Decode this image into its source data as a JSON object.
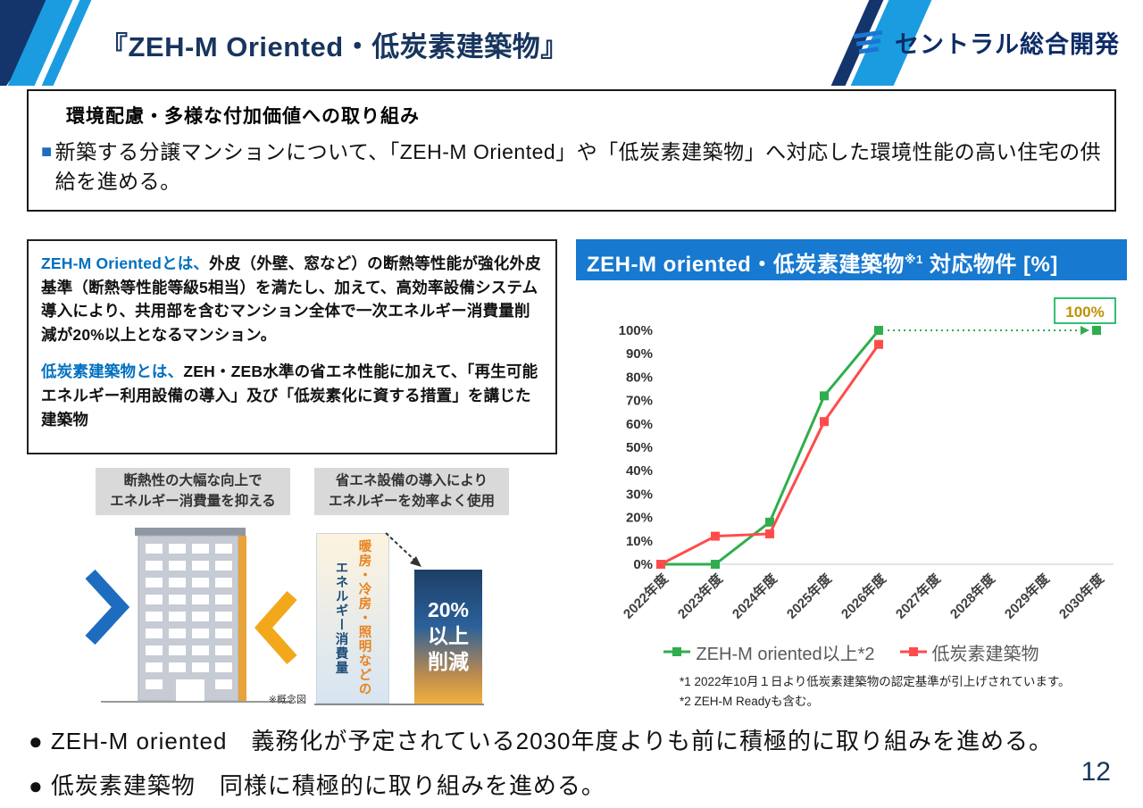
{
  "colors": {
    "accent_blue": "#1B9CE0",
    "navy": "#17355E",
    "chart_header_bg": "#1779D0",
    "lead_blue": "#0070C0",
    "bullet_blue": "#1E6BBF",
    "series_green": "#2FAE4D",
    "series_red": "#FF4B4B"
  },
  "page": {
    "title": "『ZEH-M Oriented・低炭素建築物』",
    "logo_text": "セントラル総合開発",
    "page_number": "12"
  },
  "intro": {
    "heading": "環境配慮・多様な付加価値への取り組み",
    "marker": "■",
    "bullet": "新築する分譲マンションについて、「ZEH-M Oriented」や「低炭素建築物」へ対応した環境性能の高い住宅の供給を進める。"
  },
  "definitions": {
    "zehm_lead": "ZEH-M Orientedとは、",
    "zehm_body": "外皮（外壁、窓など）の断熱等性能が強化外皮基準（断熱等性能等級5相当）を満たし、加えて、高効率設備システム導入により、共用部を含むマンション全体で一次エネルギー消費量削減が20%以上となるマンション。",
    "low_carbon_lead": "低炭素建築物とは、",
    "low_carbon_body": "ZEH・ZEB水準の省エネ性能に加えて、「再生可能エネルギー利用設備の導入」及び「低炭素化に資する措置」を講じた建築物"
  },
  "figures": {
    "left_caption_line1": "断熱性の大幅な向上で",
    "left_caption_line2": "エネルギー消費量を抑える",
    "left_note": "※概念図",
    "right_caption_line1": "省エネ設備の導入により",
    "right_caption_line2": "エネルギーを効率よく使用",
    "bar_label_line1": "暖房・冷房・照明などの",
    "bar_label_line2": "エネルギー消費量",
    "reduction_line1": "20%",
    "reduction_line2": "以上",
    "reduction_line3": "削減"
  },
  "chart": {
    "title_main": "ZEH-M oriented・低炭素建築物",
    "title_sup": "※1",
    "title_tail": " 対応物件 [%]",
    "annotation": {
      "text": "100%",
      "color": "#BF9000",
      "border": "#00B050"
    },
    "legend": [
      {
        "label": "ZEH-M oriented以上*2",
        "color": "#2FAE4D"
      },
      {
        "label": "低炭素建築物",
        "color": "#FF4B4B"
      }
    ],
    "footnote1": "*1 2022年10月１日より低炭素建築物の認定基準が引上げされています。",
    "footnote2": "*2 ZEH-M Readyも含む。"
  },
  "chart_data": {
    "type": "line",
    "title": "ZEH-M oriented・低炭素建築物※1 対応物件 [%]",
    "categories": [
      "2022年度",
      "2023年度",
      "2024年度",
      "2025年度",
      "2026年度",
      "2027年度",
      "2028年度",
      "2029年度",
      "2030年度"
    ],
    "series": [
      {
        "name": "ZEH-M oriented以上*2",
        "color": "#2FAE4D",
        "values": [
          0,
          0,
          18,
          72,
          100,
          null,
          null,
          null,
          100
        ],
        "projection_from": 4,
        "projection_to": 8
      },
      {
        "name": "低炭素建築物",
        "color": "#FF4B4B",
        "values": [
          0,
          12,
          13,
          61,
          94,
          null,
          null,
          null,
          null
        ]
      }
    ],
    "ylim": [
      0,
      100
    ],
    "ytick_step": 10,
    "ytick_suffix": "%",
    "grid": false,
    "legend_position": "bottom",
    "annotation": {
      "text": "100%",
      "x_index": 8,
      "y": 100
    }
  },
  "conclusions": [
    "● ZEH-M oriented　義務化が予定されている2030年度よりも前に積極的に取り組みを進める。",
    "● 低炭素建築物　同様に積極的に取り組みを進める。"
  ]
}
